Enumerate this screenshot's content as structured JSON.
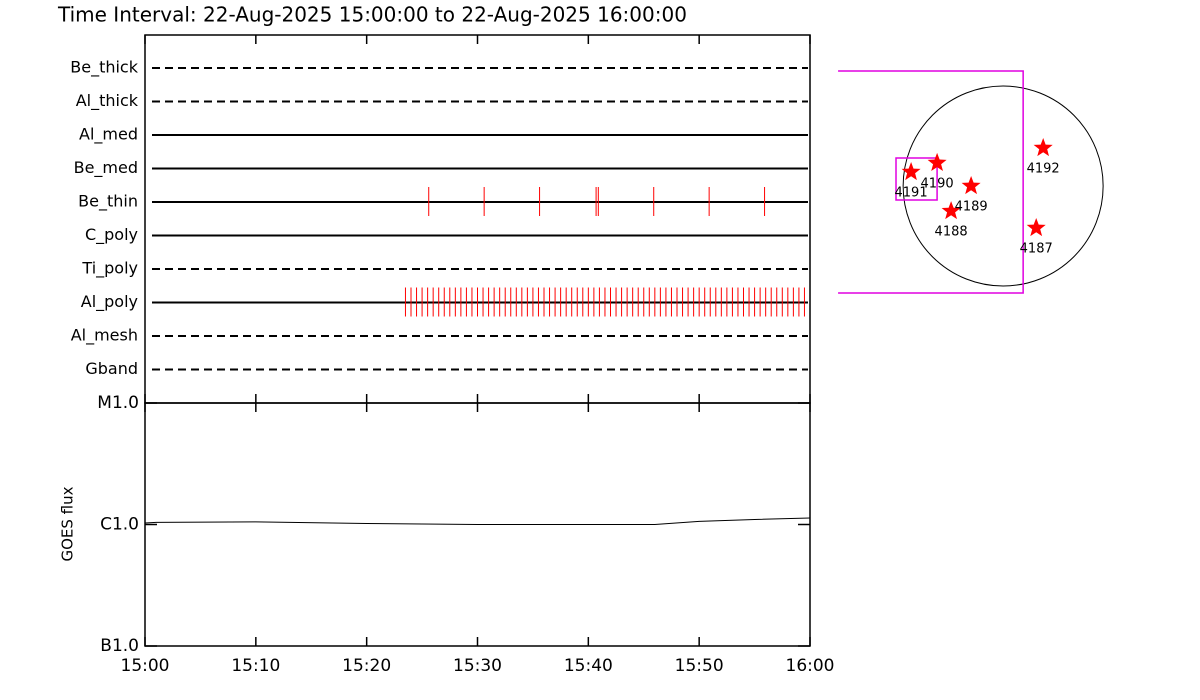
{
  "chart_data": [
    {
      "type": "timeline",
      "title": "Time Interval: 22-Aug-2025 15:00:00 to 22-Aug-2025 16:00:00",
      "xlim": [
        0,
        60
      ],
      "series": [
        {
          "name": "Be_thick",
          "linestyle": "dashed",
          "color": "#ff0000",
          "times": []
        },
        {
          "name": "Al_thick",
          "linestyle": "dashed",
          "color": "#ff0000",
          "times": []
        },
        {
          "name": "Al_med",
          "linestyle": "solid",
          "color": "#ff0000",
          "times": []
        },
        {
          "name": "Be_med",
          "linestyle": "solid",
          "color": "#ff0000",
          "times": []
        },
        {
          "name": "Be_thin",
          "linestyle": "solid",
          "color": "#ff0000",
          "times": [
            25.6,
            30.6,
            35.6,
            40.7,
            40.9,
            45.9,
            50.9,
            55.9
          ]
        },
        {
          "name": "C_poly",
          "linestyle": "solid",
          "color": "#ff0000",
          "times": []
        },
        {
          "name": "Ti_poly",
          "linestyle": "dashed",
          "color": "#ff0000",
          "times": []
        },
        {
          "name": "Al_poly",
          "linestyle": "solid",
          "color": "#ff0000",
          "times": [
            23.5,
            24.0,
            24.5,
            25.0,
            25.5,
            26.0,
            26.5,
            27.0,
            27.5,
            28.0,
            28.5,
            29.0,
            29.5,
            30.0,
            30.5,
            31.0,
            31.5,
            32.0,
            32.5,
            33.0,
            33.5,
            34.0,
            34.5,
            35.0,
            35.5,
            36.0,
            36.5,
            37.0,
            37.5,
            38.0,
            38.5,
            39.0,
            39.5,
            40.0,
            40.5,
            41.0,
            41.5,
            42.0,
            42.5,
            43.0,
            43.5,
            44.0,
            44.5,
            45.0,
            45.5,
            46.0,
            46.5,
            47.0,
            47.5,
            48.0,
            48.5,
            49.0,
            49.5,
            50.0,
            50.5,
            51.0,
            51.5,
            52.0,
            52.5,
            53.0,
            53.5,
            54.0,
            54.5,
            55.0,
            55.5,
            56.0,
            56.5,
            57.0,
            57.5,
            58.0,
            58.5,
            59.0,
            59.5
          ]
        },
        {
          "name": "Al_mesh",
          "linestyle": "dashed",
          "color": "#ff0000",
          "times": []
        },
        {
          "name": "Gband",
          "linestyle": "dashed",
          "color": "#ff0000",
          "times": []
        }
      ]
    },
    {
      "type": "line",
      "ylabel": "GOES flux",
      "log": true,
      "color": "#000000",
      "x": [
        0,
        1,
        10,
        20,
        30,
        40,
        46,
        50,
        55,
        60
      ],
      "values": [
        1.03e-06,
        1.04e-06,
        1.05e-06,
        1.02e-06,
        1e-06,
        1e-06,
        1e-06,
        1.06e-06,
        1.1e-06,
        1.13e-06
      ],
      "xlim": [
        0,
        60
      ],
      "xticks": [
        {
          "value": 0,
          "label": "15:00"
        },
        {
          "value": 10,
          "label": "15:10"
        },
        {
          "value": 20,
          "label": "15:20"
        },
        {
          "value": 30,
          "label": "15:30"
        },
        {
          "value": 40,
          "label": "15:40"
        },
        {
          "value": 50,
          "label": "15:50"
        },
        {
          "value": 60,
          "label": "16:00"
        }
      ],
      "ylim": [
        1e-07,
        1e-05
      ],
      "yticks": [
        {
          "value": 1e-07,
          "label": "B1.0"
        },
        {
          "value": 1e-06,
          "label": "C1.0"
        },
        {
          "value": 1e-05,
          "label": "M1.0"
        }
      ]
    },
    {
      "type": "scatter",
      "color": "#ff0000",
      "fov_color": "#e000e0",
      "xlim": [
        -1900,
        1850
      ],
      "ylim": [
        -1900,
        1900
      ],
      "solar_radius": 950,
      "fov": [
        [
          -1567,
          190
        ],
        [
          -1017,
          1092
        ]
      ],
      "subfov": [
        [
          -1017,
          -627
        ],
        [
          -133,
          266
        ]
      ],
      "names": [
        "4187",
        "4188",
        "4189",
        "4190",
        "4191",
        "4192"
      ],
      "x": [
        314,
        -494,
        -304,
        -627,
        -874,
        380
      ],
      "y": [
        -399,
        -238,
        0,
        219,
        133,
        361
      ]
    }
  ]
}
